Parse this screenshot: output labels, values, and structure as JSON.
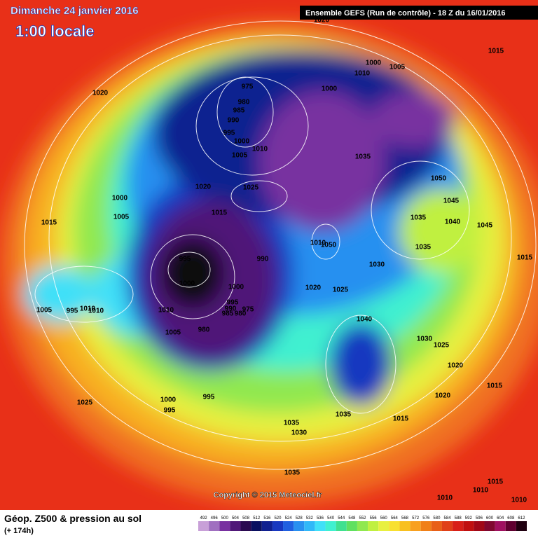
{
  "header": {
    "date": "Dimanche 24 janvier 2016",
    "time": "1:00 locale",
    "run": "Ensemble GEFS  (Run de contrôle)  -  18 Z du 16/01/2016"
  },
  "footer": {
    "title": "Géop. Z500 & pression au sol",
    "lead": "(+ 174h)",
    "copyright": "Copyright © 2015 Meteociel.fr"
  },
  "isobar_labels": [
    "1020",
    "1015",
    "1010",
    "1000",
    "1005",
    "1020",
    "975",
    "1000",
    "980",
    "985",
    "990",
    "995",
    "1000",
    "1010",
    "1005",
    "1035",
    "1050",
    "1020",
    "1025",
    "1000",
    "1045",
    "1015",
    "1005",
    "1015",
    "1035",
    "1040",
    "1045",
    "1010",
    "1050",
    "1035",
    "995",
    "990",
    "1015",
    "1030",
    "1000",
    "1000",
    "1020",
    "1025",
    "995",
    "975",
    "1010",
    "990",
    "985",
    "980",
    "1005",
    "995",
    "1010",
    "1010",
    "1040",
    "1005",
    "980",
    "1030",
    "1025",
    "1020",
    "1015",
    "1020",
    "1000",
    "995",
    "995",
    "1025",
    "1035",
    "1015",
    "1035",
    "1030",
    "1035",
    "1015",
    "1010",
    "1010",
    "1010"
  ],
  "scale": {
    "values": [
      492,
      496,
      500,
      504,
      508,
      512,
      516,
      520,
      524,
      528,
      532,
      536,
      540,
      544,
      548,
      552,
      556,
      560,
      564,
      568,
      572,
      576,
      580,
      584,
      588,
      592,
      596,
      600,
      604,
      608,
      612
    ],
    "colors": [
      "#c8a0d8",
      "#a070c0",
      "#7830a0",
      "#501878",
      "#2a0a50",
      "#0a1060",
      "#102090",
      "#1838c0",
      "#2060e0",
      "#2890f0",
      "#30b8f8",
      "#40e0f8",
      "#40f0d0",
      "#40e090",
      "#60e060",
      "#90e850",
      "#c0f040",
      "#e8f040",
      "#f8e030",
      "#f8c020",
      "#f8a020",
      "#f08018",
      "#e86018",
      "#e04018",
      "#d82018",
      "#c01010",
      "#a00818",
      "#800830",
      "#a01060",
      "#600030",
      "#200010"
    ]
  }
}
